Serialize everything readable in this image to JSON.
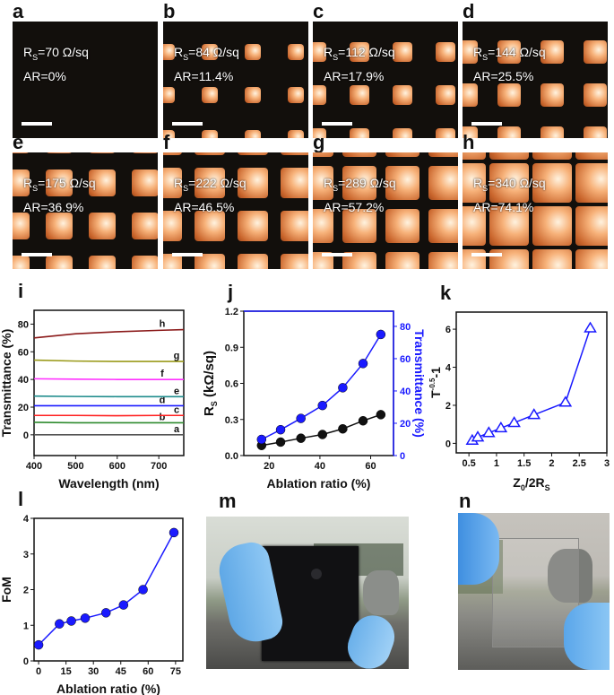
{
  "micrographs": [
    {
      "panel": "a",
      "rs_sym": "R",
      "rs_sub": "S",
      "rs_value": "=70 Ω/sq",
      "ar_text": "AR=0%",
      "ar": 0
    },
    {
      "panel": "b",
      "rs_sym": "R",
      "rs_sub": "S",
      "rs_value": "=84 Ω/sq",
      "ar_text": "AR=11.4%",
      "ar": 11.4
    },
    {
      "panel": "c",
      "rs_sym": "R",
      "rs_sub": "S",
      "rs_value": "=112 Ω/sq",
      "ar_text": "AR=17.9%",
      "ar": 17.9
    },
    {
      "panel": "d",
      "rs_sym": "R",
      "rs_sub": "S",
      "rs_value": "=144 Ω/sq",
      "ar_text": "AR=25.5%",
      "ar": 25.5
    },
    {
      "panel": "e",
      "rs_sym": "R",
      "rs_sub": "S",
      "rs_value": "=175 Ω/sq",
      "ar_text": "AR=36.9%",
      "ar": 36.9
    },
    {
      "panel": "f",
      "rs_sym": "R",
      "rs_sub": "S",
      "rs_value": "=222 Ω/sq",
      "ar_text": "AR=46.5%",
      "ar": 46.5
    },
    {
      "panel": "g",
      "rs_sym": "R",
      "rs_sub": "S",
      "rs_value": "=289 Ω/sq",
      "ar_text": "AR=57.2%",
      "ar": 57.2
    },
    {
      "panel": "h",
      "rs_sym": "R",
      "rs_sub": "S",
      "rs_value": "=340 Ω/sq",
      "ar_text": "AR=74.1%",
      "ar": 74.1
    }
  ],
  "photos": {
    "m": "m",
    "n": "n"
  },
  "colors": {
    "blue": "#1a1aff",
    "pattern": "#e8945a",
    "background": "#120f0c"
  },
  "chart_data": [
    {
      "panel": "i",
      "type": "line",
      "xlabel": "Wavelength (nm)",
      "ylabel": "Transmittance (%)",
      "xlim": [
        400,
        760
      ],
      "ylim": [
        -15,
        90
      ],
      "xticks": [
        400,
        500,
        600,
        700
      ],
      "yticks": [
        0,
        20,
        40,
        60,
        80
      ],
      "x": [
        400,
        500,
        600,
        700,
        760
      ],
      "series": [
        {
          "name": "a",
          "color": "#555555",
          "values": [
            0,
            0,
            0,
            0,
            0
          ]
        },
        {
          "name": "b",
          "color": "#2e8b2e",
          "values": [
            9,
            8.7,
            8.7,
            8.7,
            8.7
          ]
        },
        {
          "name": "c",
          "color": "#ff2020",
          "values": [
            14,
            14,
            13.8,
            14,
            14
          ]
        },
        {
          "name": "d",
          "color": "#1a1aff",
          "values": [
            21,
            21,
            21,
            21,
            21
          ]
        },
        {
          "name": "e",
          "color": "#1f8c8c",
          "values": [
            28,
            27.7,
            27.6,
            27.6,
            27.6
          ]
        },
        {
          "name": "f",
          "color": "#ff30ff",
          "values": [
            40.5,
            40.2,
            40,
            40,
            40
          ]
        },
        {
          "name": "g",
          "color": "#9a9a1a",
          "values": [
            54,
            53.3,
            53,
            53,
            53
          ]
        },
        {
          "name": "h",
          "color": "#8b1a1a",
          "values": [
            70,
            73,
            74.5,
            75.5,
            76
          ]
        }
      ]
    },
    {
      "panel": "j",
      "type": "line",
      "xlabel": "Ablation ratio (%)",
      "ylabel_main": "R",
      "ylabel_sub": "S",
      "ylabel_rest": " (kΩ/sq)",
      "ylabel_right": "Transmittance (%)",
      "xlim": [
        10,
        69
      ],
      "ylim": [
        0,
        1.2
      ],
      "ylim_right": [
        0,
        89.4
      ],
      "xticks": [
        20,
        40,
        60
      ],
      "yticks": [
        0.0,
        0.3,
        0.6,
        0.9,
        1.2
      ],
      "yticks_right": [
        0,
        20,
        40,
        60,
        80
      ],
      "x": [
        17,
        24.5,
        32.5,
        41,
        49,
        57,
        64
      ],
      "series": [
        {
          "axis": "left",
          "color": "#111111",
          "values": [
            0.084,
            0.112,
            0.144,
            0.175,
            0.222,
            0.289,
            0.34
          ]
        },
        {
          "axis": "right",
          "color": "#1a1aff",
          "values": [
            10,
            16,
            23,
            31,
            42,
            57,
            75
          ]
        }
      ]
    },
    {
      "panel": "k",
      "type": "line",
      "xlabel_main": "Z",
      "xlabel_sub0": "0",
      "xlabel_mid": "/2R",
      "xlabel_sub1": "S",
      "ylabel_main": "T",
      "ylabel_sup": "-0.5",
      "ylabel_rest": "-1",
      "xlim": [
        0.27,
        3.0
      ],
      "ylim": [
        -0.5,
        6.9
      ],
      "xticks": [
        0.5,
        1.0,
        1.5,
        2.0,
        2.5,
        3.0
      ],
      "yticks": [
        0,
        2,
        4,
        6
      ],
      "marker": "triangle",
      "x": [
        0.56,
        0.66,
        0.86,
        1.08,
        1.32,
        1.68,
        2.25,
        2.7
      ],
      "series": [
        {
          "color": "#1a1aff",
          "values": [
            0.15,
            0.32,
            0.55,
            0.8,
            1.08,
            1.5,
            2.15,
            6.05
          ]
        }
      ]
    },
    {
      "panel": "l",
      "type": "line",
      "xlabel": "Ablation ratio (%)",
      "ylabel": "FoM",
      "xlim": [
        -2.5,
        79
      ],
      "ylim": [
        0,
        4
      ],
      "xticks": [
        0,
        15,
        30,
        45,
        60,
        75
      ],
      "yticks": [
        0,
        1,
        2,
        3,
        4
      ],
      "x": [
        0,
        11.4,
        17.9,
        25.5,
        36.9,
        46.5,
        57.2,
        74.1
      ],
      "series": [
        {
          "color": "#1a1aff",
          "values": [
            0.45,
            1.04,
            1.12,
            1.2,
            1.35,
            1.57,
            2.0,
            3.6
          ]
        }
      ]
    }
  ]
}
